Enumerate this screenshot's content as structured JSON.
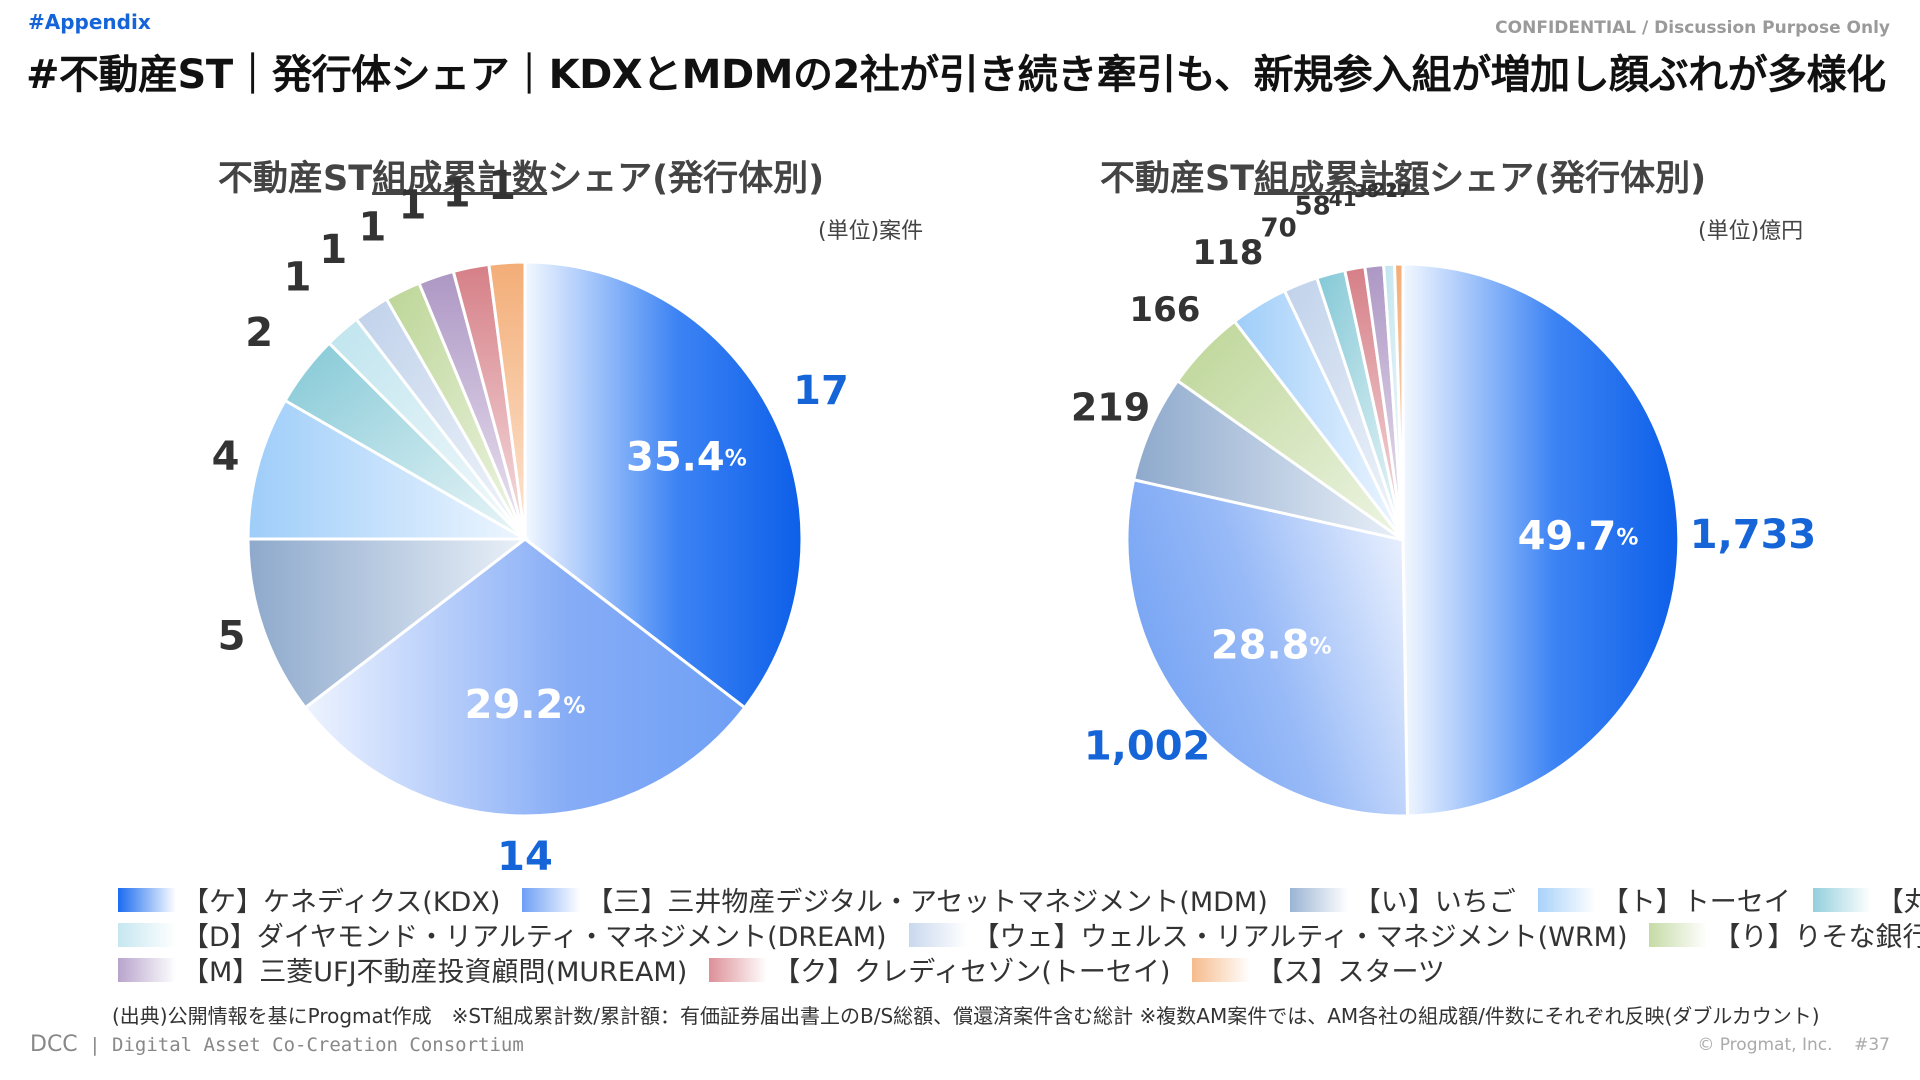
{
  "header": {
    "tag": "#Appendix",
    "confidential": "CONFIDENTIAL / Discussion Purpose Only",
    "title": "#不動産ST｜発行体シェア｜KDXとMDMの2社が引き続き牽引も、新規参入組が増加し顔ぶれが多様化"
  },
  "colors": {
    "kdx": "#1a6cf0",
    "mdm": "#6e9ff5",
    "ichigo": "#9bb4d4",
    "tosei": "#a9d2fa",
    "marubeni": "#93d0dc",
    "dream": "#c6e7f0",
    "wrm": "#c9d8ee",
    "risona": "#c6dba6",
    "muream": "#b8a4cc",
    "credit_saison": "#dd9097",
    "starts": "#f6bb8c"
  },
  "chart_data": [
    {
      "type": "pie",
      "title_parts": [
        "不動産ST",
        "組成累計数",
        "シェア(発行体別)"
      ],
      "unit": "(単位)案件",
      "categories": [
        "【ケ】ケネディクス(KDX)",
        "【三】三井物産デジタル・アセットマネジメント(MDM)",
        "【い】いちご",
        "【ト】トーセイ",
        "【丸】丸紅",
        "【D】ダイヤモンド・リアルティ・マネジメント(DREAM)",
        "【ウェ】ウェルス・リアルティ・マネジメント(WRM)",
        "【り】りそな銀行",
        "【M】三菱UFJ不動産投資顧問(MUREAM)",
        "【ク】クレディセゾン(トーセイ)",
        "【ス】スターツ"
      ],
      "values": [
        17,
        14,
        5,
        4,
        2,
        1,
        1,
        1,
        1,
        1,
        1
      ],
      "value_labels": [
        "17",
        "14",
        "5",
        "4",
        "2",
        "1",
        "1",
        "1",
        "1",
        "1",
        "1"
      ],
      "pct_labels": [
        {
          "num": "35.4",
          "unit": "%"
        },
        {
          "num": "29.2",
          "unit": "%"
        }
      ]
    },
    {
      "type": "pie",
      "title_parts": [
        "不動産ST",
        "組成累計額",
        "シェア(発行体別)"
      ],
      "unit": "(単位)億円",
      "categories": [
        "【ケ】ケネディクス(KDX)",
        "【三】三井物産デジタル・アセットマネジメント(MDM)",
        "【い】いちご",
        "【り】りそな銀行",
        "【ト】トーセイ",
        "【ウェ】ウェルス・リアルティ・マネジメント(WRM)",
        "【丸】丸紅",
        "【ク】クレディセゾン(トーセイ)",
        "【M】三菱UFJ不動産投資顧問(MUREAM)",
        "【D】ダイヤモンド・リアルティ・マネジメント(DREAM)",
        "【ス】スターツ"
      ],
      "values": [
        1733,
        1002,
        219,
        166,
        118,
        70,
        58,
        41,
        38,
        22,
        17
      ],
      "value_labels": [
        "1,733",
        "1,002",
        "219",
        "166",
        "118",
        "70",
        "58",
        "41",
        "38",
        "22",
        "17"
      ],
      "pct_labels": [
        {
          "num": "49.7",
          "unit": "%"
        },
        {
          "num": "28.8",
          "unit": "%"
        }
      ]
    }
  ],
  "legend": [
    [
      {
        "label": "【ケ】ケネディクス(KDX)",
        "color": "#1a6cf0"
      },
      {
        "label": "【三】三井物産デジタル・アセットマネジメント(MDM)",
        "color": "#6e9ff5"
      },
      {
        "label": "【い】いちご",
        "color": "#9bb4d4"
      },
      {
        "label": "【ト】トーセイ",
        "color": "#a9d2fa"
      },
      {
        "label": "【丸】丸紅",
        "color": "#93d0dc"
      }
    ],
    [
      {
        "label": "【D】ダイヤモンド・リアルティ・マネジメント(DREAM)",
        "color": "#c6e7f0"
      },
      {
        "label": "【ウェ】ウェルス・リアルティ・マネジメント(WRM)",
        "color": "#c9d8ee"
      },
      {
        "label": "【り】りそな銀行",
        "color": "#c6dba6"
      }
    ],
    [
      {
        "label": "【M】三菱UFJ不動産投資顧問(MUREAM)",
        "color": "#b8a4cc"
      },
      {
        "label": "【ク】クレディセゾン(トーセイ)",
        "color": "#dd9097"
      },
      {
        "label": "【ス】スターツ",
        "color": "#f6bb8c"
      }
    ]
  ],
  "footer": {
    "source": "(出典)公開情報を基にProgmat作成　※ST組成累計数/累計額：有価証券届出書上のB/S総額、償還済案件含む総計 ※複数AM案件では、AM各社の組成額/件数にそれぞれ反映(ダブルカウント)",
    "brand": "DCC",
    "consortium": "Digital Asset Co-Creation Consortium",
    "copyright": "© Progmat, Inc.",
    "page": "#37"
  }
}
